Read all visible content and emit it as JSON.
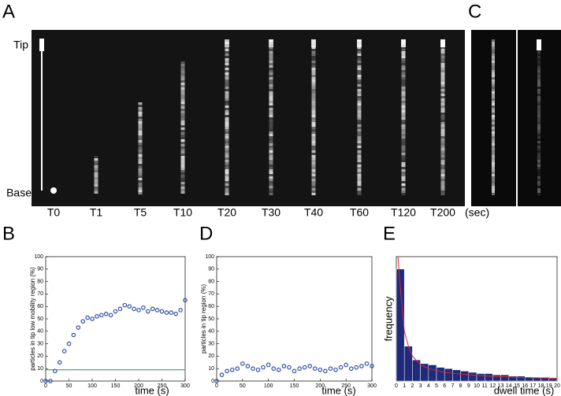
{
  "figure": {
    "panels": [
      "A",
      "B",
      "C",
      "D",
      "E"
    ],
    "tip_label": "Tip",
    "base_label": "Base",
    "time_labels": [
      "T0",
      "T1",
      "T5",
      "T10",
      "T20",
      "T30",
      "T40",
      "T60",
      "T120",
      "T200"
    ],
    "time_unit": "(sec)"
  },
  "chart_data": [
    {
      "type": "scatter",
      "ylabel": "particles in tip low mobility region (%)",
      "xlabel": "time (s)",
      "xlim": [
        0,
        300
      ],
      "ylim": [
        0,
        100
      ],
      "xticks": [
        0,
        50,
        100,
        150,
        200,
        250,
        300
      ],
      "yticks": [
        0,
        10,
        20,
        30,
        40,
        50,
        60,
        70,
        80,
        90,
        100
      ],
      "series": [
        {
          "color": "#2f4fa8",
          "mode": "markers",
          "x": [
            0,
            10,
            20,
            30,
            40,
            50,
            60,
            70,
            80,
            90,
            100,
            110,
            120,
            130,
            140,
            150,
            160,
            170,
            180,
            190,
            200,
            210,
            220,
            230,
            240,
            250,
            260,
            270,
            280,
            290,
            300
          ],
          "values": [
            0,
            0,
            8,
            15,
            24,
            30,
            37,
            43,
            48,
            51,
            50,
            52,
            53,
            54,
            53,
            56,
            58,
            61,
            60,
            58,
            57,
            59,
            56,
            58,
            57,
            56,
            55,
            55,
            54,
            57,
            65
          ]
        },
        {
          "color": "#2e8b57",
          "mode": "line",
          "x": [
            0,
            300
          ],
          "values": [
            9,
            9
          ]
        }
      ]
    },
    {
      "type": "scatter",
      "ylabel": "particles in tip region (%)",
      "xlabel": "time (s)",
      "xlim": [
        0,
        300
      ],
      "ylim": [
        0,
        100
      ],
      "xticks": [
        0,
        50,
        100,
        150,
        200,
        250,
        300
      ],
      "yticks": [
        0,
        10,
        20,
        30,
        40,
        50,
        60,
        70,
        80,
        90,
        100
      ],
      "series": [
        {
          "color": "#2f4fa8",
          "mode": "markers",
          "x": [
            0,
            10,
            20,
            30,
            40,
            50,
            60,
            70,
            80,
            90,
            100,
            110,
            120,
            130,
            140,
            150,
            160,
            170,
            180,
            190,
            200,
            210,
            220,
            230,
            240,
            250,
            260,
            270,
            280,
            290,
            300
          ],
          "values": [
            0,
            5,
            8,
            9,
            10,
            14,
            12,
            10,
            9,
            11,
            13,
            10,
            9,
            12,
            11,
            8,
            10,
            11,
            12,
            10,
            9,
            8,
            10,
            9,
            11,
            13,
            10,
            11,
            12,
            14,
            12
          ]
        }
      ]
    },
    {
      "type": "histogram",
      "ylabel": "frequency",
      "xlabel": "dwell time (s)",
      "xlim": [
        0,
        20
      ],
      "ylim": [
        0,
        100
      ],
      "xticks": [
        0,
        1,
        2,
        3,
        4,
        5,
        6,
        7,
        8,
        9,
        10,
        11,
        12,
        13,
        14,
        15,
        16,
        17,
        18,
        19,
        20
      ],
      "bins": [
        0,
        1,
        2,
        3,
        4,
        5,
        6,
        7,
        8,
        9,
        10,
        11,
        12,
        13,
        14,
        15,
        16,
        17,
        18,
        19,
        20
      ],
      "counts": [
        90,
        28,
        17,
        14,
        13,
        11,
        10,
        9,
        8,
        7,
        6,
        6,
        5,
        5,
        4,
        4,
        3,
        3,
        3,
        2
      ],
      "color": "#1f2a7a",
      "fit": {
        "color": "#e0282e",
        "x": [
          0.2,
          0.5,
          1,
          1.5,
          2,
          3,
          4,
          6,
          8,
          10,
          12,
          15,
          18,
          20
        ],
        "values": [
          100,
          75,
          40,
          28,
          20,
          13,
          10,
          7,
          5.5,
          4.5,
          3.8,
          3,
          2.5,
          2.2
        ]
      }
    }
  ]
}
